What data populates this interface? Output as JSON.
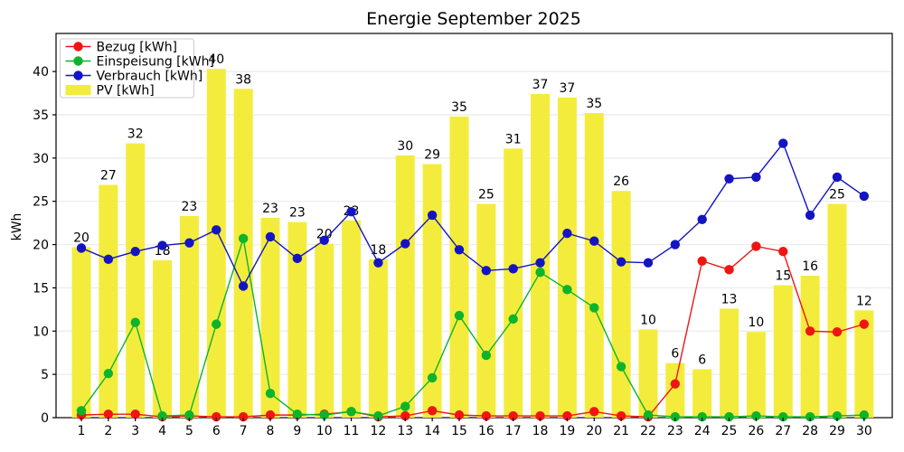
{
  "chart_data": {
    "type": "line+bar",
    "title": "Energie September 2025",
    "ylabel": "kWh",
    "x_tick_labels": [
      "1",
      "2",
      "3",
      "4",
      "5",
      "6",
      "7",
      "8",
      "9",
      "10",
      "11",
      "12",
      "13",
      "14",
      "15",
      "16",
      "17",
      "18",
      "19",
      "20",
      "21",
      "22",
      "23",
      "24",
      "25",
      "26",
      "27",
      "28",
      "29",
      "30"
    ],
    "series": [
      {
        "id": "bezug",
        "name": "Bezug [kWh]",
        "type": "line",
        "color": "#f01515",
        "values": [
          0.3,
          0.4,
          0.4,
          0.1,
          0.2,
          0.1,
          0.1,
          0.3,
          0.3,
          0.4,
          0.7,
          0.1,
          0.2,
          0.8,
          0.3,
          0.2,
          0.2,
          0.2,
          0.2,
          0.7,
          0.2,
          0.1,
          3.9,
          18.1,
          17.1,
          19.8,
          19.2,
          10.0,
          9.9,
          10.8
        ]
      },
      {
        "id": "einspeisung",
        "name": "Einspeisung [kWh]",
        "type": "line",
        "color": "#0cb42c",
        "values": [
          0.8,
          5.1,
          11.0,
          0.2,
          0.3,
          10.8,
          20.7,
          2.8,
          0.4,
          0.3,
          0.7,
          0.2,
          1.3,
          4.6,
          11.8,
          7.2,
          11.4,
          16.8,
          14.8,
          12.7,
          5.9,
          0.3,
          0.1,
          0.1,
          0.1,
          0.2,
          0.1,
          0.1,
          0.2,
          0.3
        ]
      },
      {
        "id": "verbrauch",
        "name": "Verbrauch [kWh]",
        "type": "line",
        "color": "#1414c3",
        "values": [
          19.6,
          18.3,
          19.2,
          19.9,
          20.2,
          21.7,
          15.2,
          20.9,
          18.4,
          20.5,
          23.8,
          17.9,
          20.1,
          23.4,
          19.4,
          17.0,
          17.2,
          17.9,
          21.3,
          20.4,
          18.0,
          17.9,
          20.0,
          22.9,
          27.6,
          27.8,
          31.7,
          23.4,
          27.8,
          25.6
        ]
      },
      {
        "id": "pv",
        "name": "PV [kWh]",
        "type": "bar",
        "color": "#f4ec3c",
        "values": [
          19.7,
          26.9,
          31.7,
          18.2,
          23.3,
          40.3,
          38.0,
          23.1,
          22.6,
          20.1,
          22.8,
          18.3,
          30.3,
          29.3,
          34.8,
          24.7,
          31.1,
          37.4,
          37.0,
          35.2,
          26.2,
          10.2,
          6.3,
          5.6,
          12.6,
          9.9,
          15.3,
          16.4,
          24.7,
          12.4
        ],
        "labels": [
          "20",
          "27",
          "32",
          "18",
          "23",
          "40",
          "38",
          "23",
          "23",
          "20",
          "23",
          "18",
          "30",
          "29",
          "35",
          "25",
          "31",
          "37",
          "37",
          "35",
          "26",
          "10",
          "6",
          "6",
          "13",
          "10",
          "15",
          "16",
          "25",
          "12"
        ]
      }
    ],
    "axes": {
      "ylim": [
        0,
        44.4
      ],
      "yticks": [
        0,
        5,
        10,
        15,
        20,
        25,
        30,
        35,
        40
      ],
      "grid": true,
      "grid_color": "#ebebeb",
      "axis_color": "#000000"
    },
    "legend_position": "upper left"
  }
}
